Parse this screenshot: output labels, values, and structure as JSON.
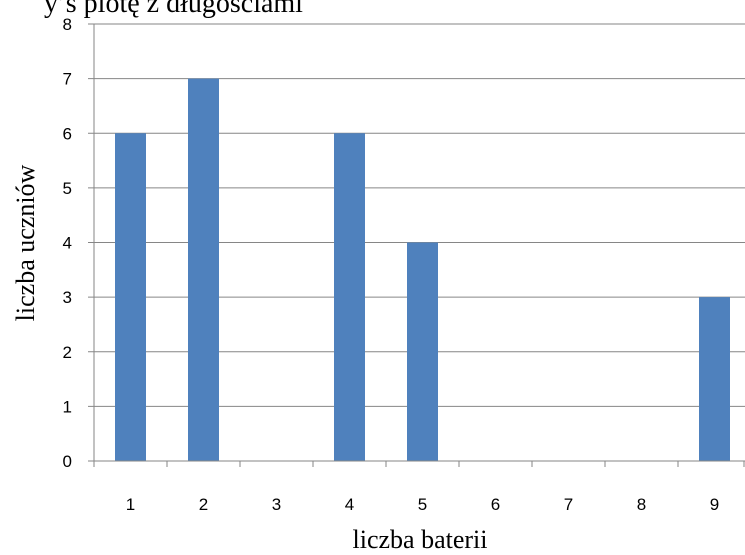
{
  "top_text": "y’s plotę z długościami",
  "chart_data": {
    "type": "bar",
    "categories": [
      "1",
      "2",
      "3",
      "4",
      "5",
      "6",
      "7",
      "8",
      "9"
    ],
    "values": [
      6,
      7,
      0,
      6,
      4,
      0,
      0,
      0,
      3
    ],
    "xlabel": "liczba baterii",
    "ylabel": "liczba uczniów",
    "ylim": [
      0,
      8
    ],
    "yticks": [
      0,
      1,
      2,
      3,
      4,
      5,
      6,
      7,
      8
    ],
    "grid": true,
    "legend": "none",
    "bar_color": "#4f81bd"
  }
}
